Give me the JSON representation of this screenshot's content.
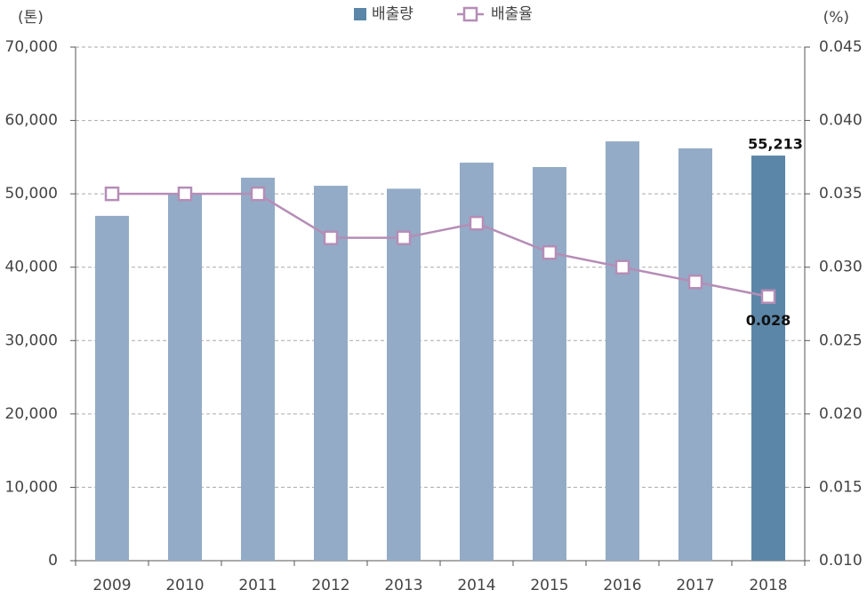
{
  "chart_data": {
    "type": "bar_line",
    "y_label": "(톤)",
    "y2_label": "(%)",
    "categories": [
      "2009",
      "2010",
      "2011",
      "2012",
      "2013",
      "2014",
      "2015",
      "2016",
      "2017",
      "2018"
    ],
    "series": [
      {
        "name": "배출량",
        "type": "bar",
        "color": "#93abc6",
        "colors": [
          "#93abc6",
          "#93abc6",
          "#93abc6",
          "#93abc6",
          "#93abc6",
          "#93abc6",
          "#93abc6",
          "#93abc6",
          "#93abc6",
          "#5b86a8"
        ],
        "values": [
          47000,
          50100,
          52200,
          51100,
          50700,
          54250,
          53650,
          57150,
          56200,
          55213
        ],
        "value_labels": [
          null,
          null,
          null,
          null,
          null,
          null,
          null,
          null,
          null,
          "55,213"
        ]
      },
      {
        "name": "배출율",
        "type": "line",
        "axis": "y2",
        "color": "#b58db6",
        "values": [
          0.035,
          0.035,
          0.035,
          0.032,
          0.032,
          0.033,
          0.031,
          0.03,
          0.029,
          0.028
        ],
        "value_labels": [
          null,
          null,
          null,
          null,
          null,
          null,
          null,
          null,
          null,
          "0.028"
        ]
      }
    ],
    "ylim": [
      0,
      70000
    ],
    "yticks": [
      0,
      {
        "value": 10000,
        "label": "10,000"
      },
      {
        "value": 20000,
        "label": "20,000"
      },
      {
        "value": 30000,
        "label": "30,000"
      },
      {
        "value": 40000,
        "label": "40,000"
      },
      {
        "value": 50000,
        "label": "50,000"
      },
      {
        "value": 60000,
        "label": "60,000"
      },
      {
        "value": 70000,
        "label": "70,000"
      }
    ],
    "y2lim": [
      0.01,
      0.045
    ],
    "y2ticks": [
      {
        "value": 0.01,
        "label": "0.010"
      },
      0.015,
      {
        "value": 0.02,
        "label": "0.020"
      },
      0.025,
      {
        "value": 0.03,
        "label": "0.030"
      },
      0.035,
      {
        "value": 0.04,
        "label": "0.040"
      },
      0.045
    ],
    "grid": true,
    "legend": "top"
  }
}
